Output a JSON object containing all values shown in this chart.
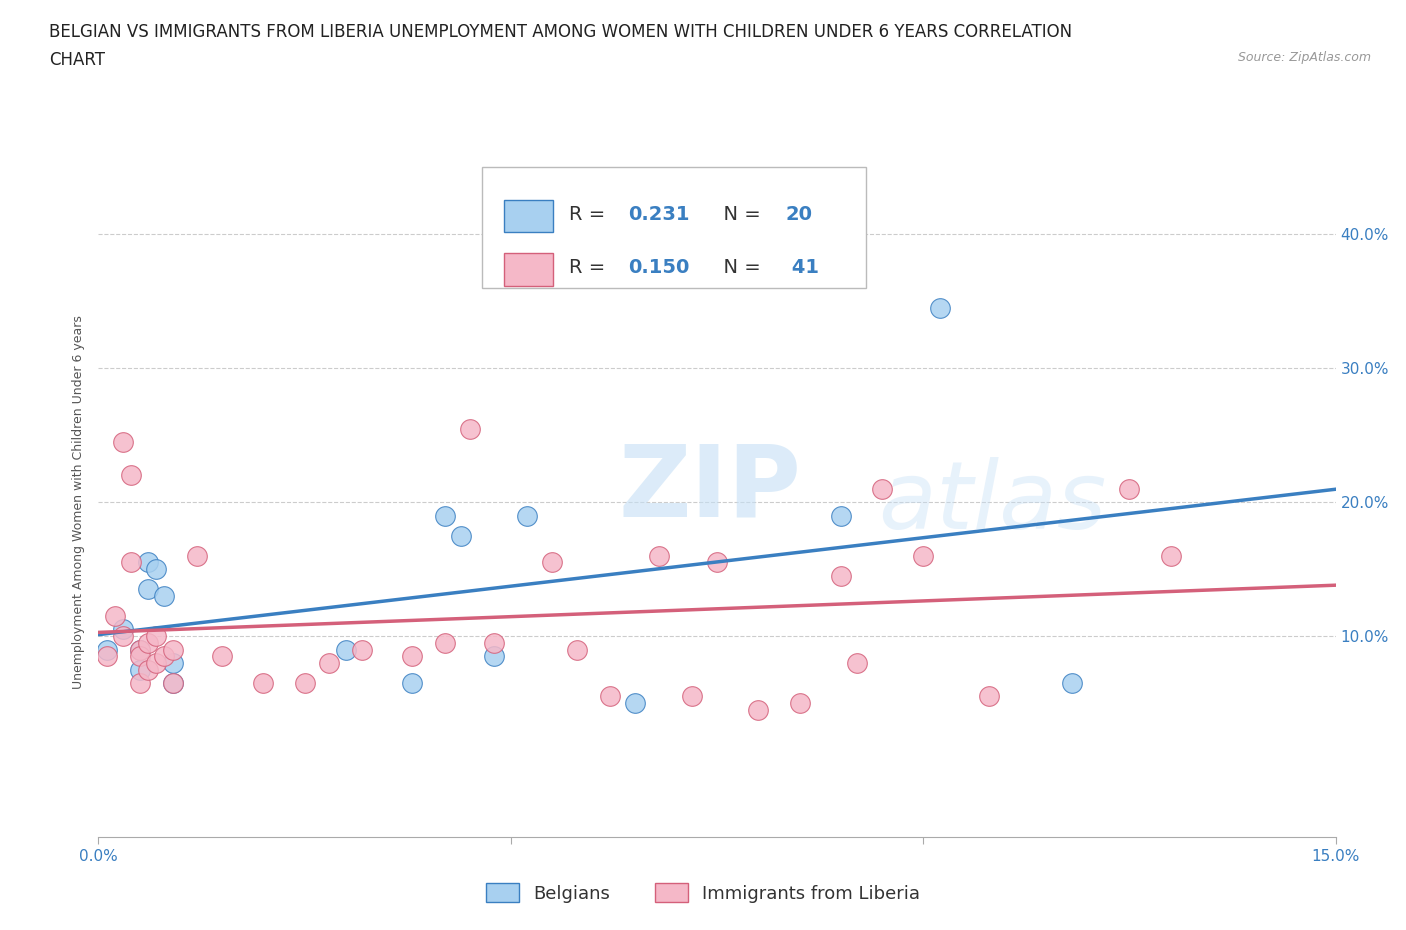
{
  "title_line1": "BELGIAN VS IMMIGRANTS FROM LIBERIA UNEMPLOYMENT AMONG WOMEN WITH CHILDREN UNDER 6 YEARS CORRELATION",
  "title_line2": "CHART",
  "source": "Source: ZipAtlas.com",
  "ylabel": "Unemployment Among Women with Children Under 6 years",
  "watermark": "ZIPatlas",
  "legend_label1": "Belgians",
  "legend_label2": "Immigrants from Liberia",
  "R1": 0.231,
  "N1": 20,
  "R2": 0.15,
  "N2": 41,
  "xlim": [
    0.0,
    0.15
  ],
  "ylim": [
    -0.05,
    0.45
  ],
  "color_blue": "#a8d0f0",
  "color_pink": "#f5b8c8",
  "color_line_blue": "#3a7fc1",
  "color_line_pink": "#d4607a",
  "background_color": "#ffffff",
  "blue_scatter_x": [
    0.001,
    0.003,
    0.005,
    0.005,
    0.006,
    0.006,
    0.007,
    0.008,
    0.009,
    0.009,
    0.03,
    0.038,
    0.042,
    0.044,
    0.048,
    0.052,
    0.065,
    0.09,
    0.102,
    0.118
  ],
  "blue_scatter_y": [
    0.09,
    0.105,
    0.09,
    0.075,
    0.135,
    0.155,
    0.15,
    0.13,
    0.065,
    0.08,
    0.09,
    0.065,
    0.19,
    0.175,
    0.085,
    0.19,
    0.05,
    0.19,
    0.345,
    0.065
  ],
  "pink_scatter_x": [
    0.001,
    0.002,
    0.003,
    0.003,
    0.004,
    0.004,
    0.005,
    0.005,
    0.005,
    0.006,
    0.006,
    0.007,
    0.007,
    0.008,
    0.009,
    0.009,
    0.012,
    0.015,
    0.02,
    0.025,
    0.028,
    0.032,
    0.038,
    0.042,
    0.045,
    0.048,
    0.055,
    0.058,
    0.062,
    0.068,
    0.072,
    0.075,
    0.08,
    0.085,
    0.09,
    0.092,
    0.095,
    0.1,
    0.108,
    0.125,
    0.13
  ],
  "pink_scatter_y": [
    0.085,
    0.115,
    0.1,
    0.245,
    0.155,
    0.22,
    0.09,
    0.085,
    0.065,
    0.095,
    0.075,
    0.08,
    0.1,
    0.085,
    0.065,
    0.09,
    0.16,
    0.085,
    0.065,
    0.065,
    0.08,
    0.09,
    0.085,
    0.095,
    0.255,
    0.095,
    0.155,
    0.09,
    0.055,
    0.16,
    0.055,
    0.155,
    0.045,
    0.05,
    0.145,
    0.08,
    0.21,
    0.16,
    0.055,
    0.21,
    0.16
  ],
  "title_fontsize": 12,
  "axis_label_fontsize": 9,
  "tick_fontsize": 11,
  "scatter_size": 200
}
